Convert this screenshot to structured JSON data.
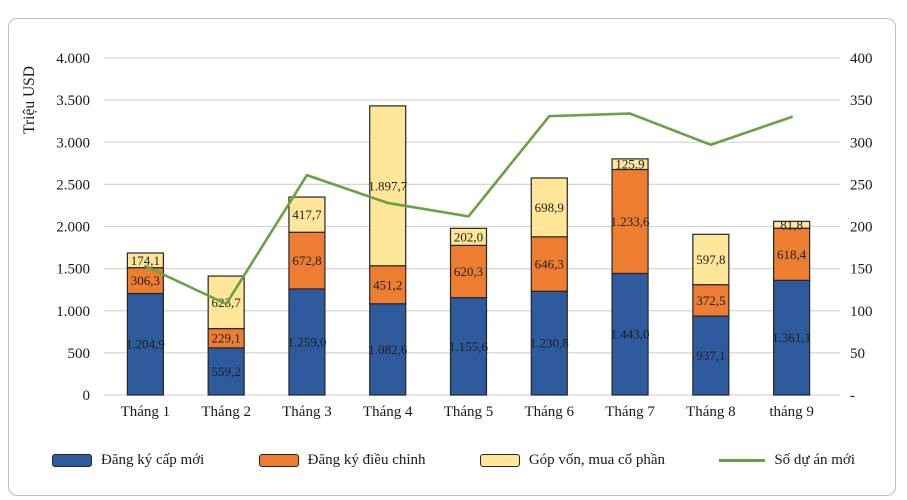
{
  "chart_data": {
    "type": "bar",
    "subtype": "stacked-bar-with-line-combo",
    "title": "",
    "categories": [
      "Tháng 1",
      "Tháng 2",
      "Tháng 3",
      "Tháng 4",
      "Tháng 5",
      "Tháng 6",
      "Tháng 7",
      "Tháng 8",
      "tháng 9"
    ],
    "series": [
      {
        "name": "Đăng ký cấp mới",
        "color": "#2E5B9D",
        "axis": "left",
        "values": [
          1204.9,
          559.2,
          1259.0,
          1082.6,
          1155.6,
          1230.8,
          1443.0,
          937.1,
          1361.1
        ],
        "labels": [
          "1.204,9",
          "559,2",
          "1.259,0",
          "1.082,6",
          "1.155,6",
          "1.230,8",
          "1.443,0",
          "937,1",
          "1.361,1"
        ]
      },
      {
        "name": "Đăng ký điều chỉnh",
        "color": "#ED7D31",
        "axis": "left",
        "values": [
          306.3,
          229.1,
          672.8,
          451.2,
          620.3,
          646.3,
          1233.6,
          372.5,
          618.4
        ],
        "labels": [
          "306,3",
          "229,1",
          "672,8",
          "451,2",
          "620,3",
          "646,3",
          "1.233,6",
          "372,5",
          "618,4"
        ]
      },
      {
        "name": "Góp vốn, mua cổ phần",
        "color": "#FFE699",
        "axis": "left",
        "values": [
          174.1,
          623.7,
          417.7,
          1897.7,
          202.0,
          698.9,
          125.9,
          597.8,
          81.8
        ],
        "labels": [
          "174,1",
          "623,7",
          "417,7",
          "1.897,7",
          "202,0",
          "698,9",
          "125,9",
          "597,8",
          "81,8"
        ]
      }
    ],
    "line_series": {
      "name": "Số dự án mới",
      "color": "#69A244",
      "axis": "right",
      "values": [
        153,
        108,
        261,
        228,
        212,
        331,
        334,
        297,
        330
      ]
    },
    "left_axis": {
      "title": "Triệu USD",
      "min": 0,
      "max": 4000,
      "tick_values": [
        0,
        500,
        1000,
        1500,
        2000,
        2500,
        3000,
        3500,
        4000
      ],
      "tick_labels": [
        "0",
        "500",
        "1.000",
        "1.500",
        "2.000",
        "2.500",
        "3.000",
        "3.500",
        "4.000"
      ]
    },
    "right_axis": {
      "min": 0,
      "max": 400,
      "tick_values": [
        0,
        50,
        100,
        150,
        200,
        250,
        300,
        350,
        400
      ],
      "tick_labels": [
        "-",
        "50",
        "100",
        "150",
        "200",
        "250",
        "300",
        "350",
        "400"
      ]
    },
    "grid": true,
    "legend_position": "bottom"
  },
  "ui": {
    "background": "#FFFFFF",
    "frame_border_color": "#BDBDBD",
    "grid_color": "#D6D6D6",
    "bar_border_color": "#262626",
    "text_color": "#1A1A1A",
    "axis_text_color": "#1A1A1A"
  }
}
